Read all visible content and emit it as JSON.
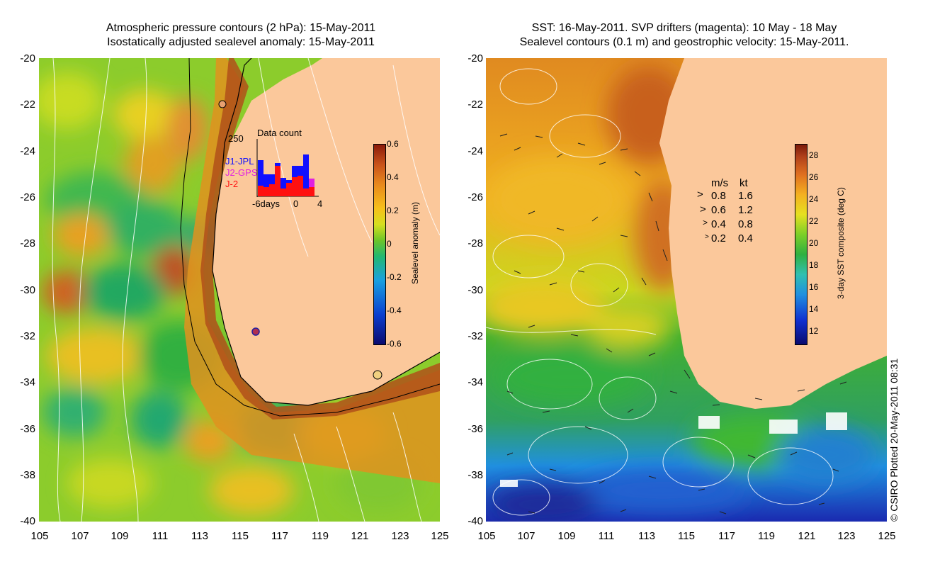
{
  "left_panel": {
    "title_line1": "Atmospheric pressure contours (2 hPa): 15-May-2011",
    "title_line2": "Isostatically adjusted sealevel anomaly: 15-May-2011",
    "inset": {
      "title": "Data count",
      "ymax_label": "250",
      "series": [
        {
          "name": "J1-JPL",
          "color": "#1010ff"
        },
        {
          "name": "J2-GPS",
          "color": "#e020e0"
        },
        {
          "name": "J-2",
          "color": "#ff1010"
        }
      ],
      "xtick_left": "-6days",
      "xtick_mid": "0",
      "xtick_right": "4"
    },
    "colorbar": {
      "label": "Sealevel anomaly (m)",
      "ticks": [
        "0.6",
        "0.4",
        "0.2",
        "0",
        "-0.2",
        "-0.4",
        "-0.6"
      ]
    }
  },
  "right_panel": {
    "title_line1": "SST: 16-May-2011. SVP drifters (magenta): 10 May - 18 May",
    "title_line2": "Sealevel contours (0.1 m) and geostrophic velocity: 15-May-2011.",
    "velocity_legend": {
      "header_ms": "m/s",
      "header_kt": "kt",
      "rows": [
        {
          "ms": "0.8",
          "kt": "1.6"
        },
        {
          "ms": "0.6",
          "kt": "1.2"
        },
        {
          "ms": "0.4",
          "kt": "0.8"
        },
        {
          "ms": "0.2",
          "kt": "0.4"
        }
      ]
    },
    "colorbar": {
      "label": "3-day SST composite (deg C)",
      "ticks": [
        "28",
        "26",
        "24",
        "22",
        "20",
        "18",
        "16",
        "14",
        "12"
      ]
    }
  },
  "axes": {
    "y_ticks": [
      "-20",
      "-22",
      "-24",
      "-26",
      "-28",
      "-30",
      "-32",
      "-34",
      "-36",
      "-38",
      "-40"
    ],
    "x_ticks": [
      "105",
      "107",
      "109",
      "111",
      "113",
      "115",
      "117",
      "119",
      "121",
      "123",
      "125"
    ]
  },
  "credit": "© CSIRO Plotted 20-May-2011 08:31",
  "colors": {
    "land": "#fbc89b",
    "contour": "#ffffff",
    "coast": "#000000"
  }
}
